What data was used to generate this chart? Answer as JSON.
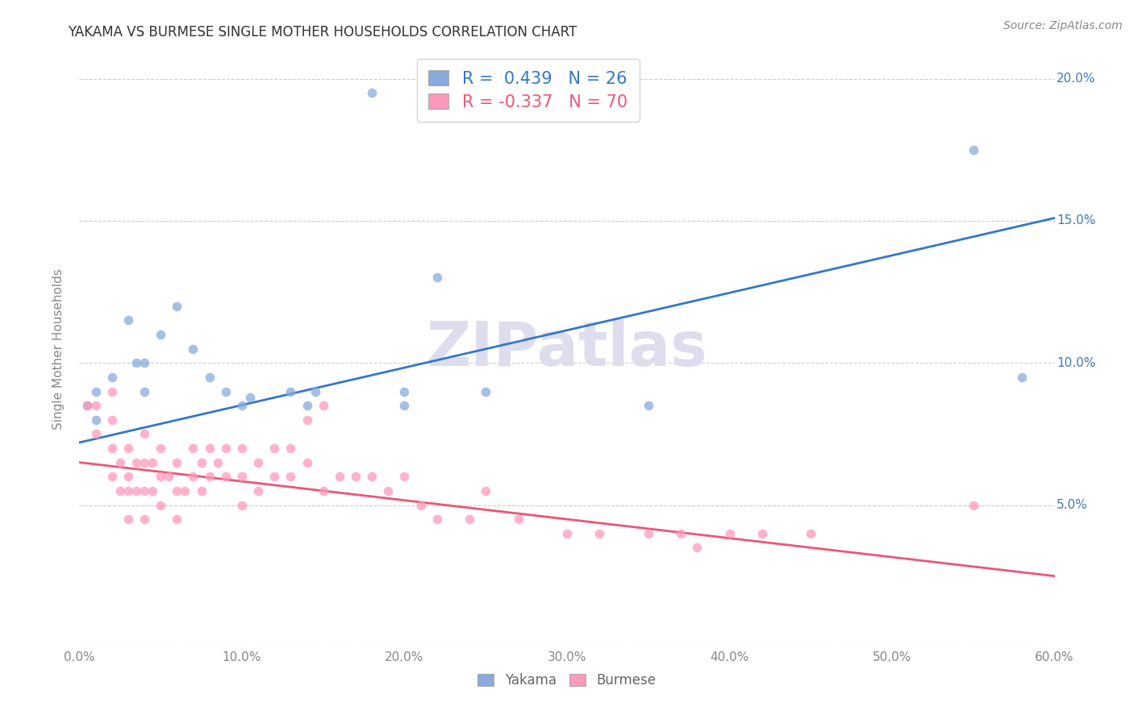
{
  "title": "YAKAMA VS BURMESE SINGLE MOTHER HOUSEHOLDS CORRELATION CHART",
  "source": "Source: ZipAtlas.com",
  "ylabel": "Single Mother Households",
  "xlim": [
    0,
    0.6
  ],
  "ylim": [
    0,
    0.21
  ],
  "xticks": [
    0.0,
    0.1,
    0.2,
    0.3,
    0.4,
    0.5,
    0.6
  ],
  "yticks": [
    0.0,
    0.05,
    0.1,
    0.15,
    0.2
  ],
  "yakama_color": "#88AADD",
  "burmese_color": "#FF99BB",
  "trendline_yakama_color": "#3377CC",
  "trendline_burmese_color": "#EE5577",
  "R_yakama": 0.439,
  "N_yakama": 26,
  "R_burmese": -0.337,
  "N_burmese": 70,
  "watermark": "ZIPatlas",
  "watermark_color": "#DDDDEE",
  "background_color": "#FFFFFF",
  "grid_color": "#CCCCCC",
  "trendline_yakama_start": 0.072,
  "trendline_yakama_end": 0.151,
  "trendline_burmese_start": 0.065,
  "trendline_burmese_end": 0.025,
  "yakama_x": [
    0.005,
    0.01,
    0.01,
    0.02,
    0.03,
    0.035,
    0.04,
    0.04,
    0.05,
    0.06,
    0.07,
    0.08,
    0.09,
    0.1,
    0.105,
    0.13,
    0.14,
    0.145,
    0.18,
    0.2,
    0.22,
    0.25,
    0.35,
    0.55,
    0.58,
    0.2
  ],
  "yakama_y": [
    0.085,
    0.09,
    0.08,
    0.095,
    0.115,
    0.1,
    0.1,
    0.09,
    0.11,
    0.12,
    0.105,
    0.095,
    0.09,
    0.085,
    0.088,
    0.09,
    0.085,
    0.09,
    0.195,
    0.09,
    0.13,
    0.09,
    0.085,
    0.175,
    0.095,
    0.085
  ],
  "burmese_x": [
    0.005,
    0.01,
    0.01,
    0.02,
    0.02,
    0.02,
    0.02,
    0.025,
    0.025,
    0.03,
    0.03,
    0.03,
    0.03,
    0.035,
    0.035,
    0.04,
    0.04,
    0.04,
    0.04,
    0.045,
    0.045,
    0.05,
    0.05,
    0.05,
    0.055,
    0.06,
    0.06,
    0.06,
    0.065,
    0.07,
    0.07,
    0.075,
    0.075,
    0.08,
    0.08,
    0.085,
    0.09,
    0.09,
    0.1,
    0.1,
    0.1,
    0.11,
    0.11,
    0.12,
    0.12,
    0.13,
    0.13,
    0.14,
    0.14,
    0.15,
    0.15,
    0.16,
    0.17,
    0.18,
    0.19,
    0.2,
    0.21,
    0.22,
    0.24,
    0.25,
    0.27,
    0.3,
    0.32,
    0.35,
    0.37,
    0.38,
    0.4,
    0.42,
    0.45,
    0.55
  ],
  "burmese_y": [
    0.085,
    0.085,
    0.075,
    0.09,
    0.08,
    0.07,
    0.06,
    0.065,
    0.055,
    0.07,
    0.06,
    0.055,
    0.045,
    0.065,
    0.055,
    0.075,
    0.065,
    0.055,
    0.045,
    0.065,
    0.055,
    0.07,
    0.06,
    0.05,
    0.06,
    0.065,
    0.055,
    0.045,
    0.055,
    0.07,
    0.06,
    0.065,
    0.055,
    0.07,
    0.06,
    0.065,
    0.07,
    0.06,
    0.07,
    0.06,
    0.05,
    0.065,
    0.055,
    0.07,
    0.06,
    0.07,
    0.06,
    0.08,
    0.065,
    0.085,
    0.055,
    0.06,
    0.06,
    0.06,
    0.055,
    0.06,
    0.05,
    0.045,
    0.045,
    0.055,
    0.045,
    0.04,
    0.04,
    0.04,
    0.04,
    0.035,
    0.04,
    0.04,
    0.04,
    0.05
  ]
}
